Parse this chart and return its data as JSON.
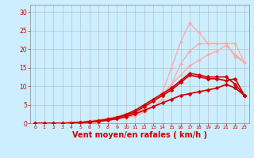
{
  "background_color": "#cceeff",
  "grid_color": "#aabbbb",
  "xlabel": "Vent moyen/en rafales ( km/h )",
  "xlabel_color": "#cc0000",
  "xlabel_fontsize": 7,
  "tick_color": "#cc0000",
  "yticks": [
    0,
    5,
    10,
    15,
    20,
    25,
    30
  ],
  "xticks": [
    0,
    1,
    2,
    3,
    4,
    5,
    6,
    7,
    8,
    9,
    10,
    11,
    12,
    13,
    14,
    15,
    16,
    17,
    18,
    19,
    20,
    21,
    22,
    23
  ],
  "xlim": [
    -0.5,
    23.5
  ],
  "ylim": [
    0,
    32
  ],
  "lines": [
    {
      "x": [
        0,
        1,
        2,
        3,
        4,
        5,
        6,
        7,
        8,
        9,
        10,
        11,
        12,
        13,
        14,
        15,
        16,
        17,
        18,
        19,
        20,
        21,
        22,
        23
      ],
      "y": [
        0,
        0,
        0,
        0,
        0,
        0.2,
        0.4,
        0.6,
        0.9,
        1.2,
        1.8,
        2.5,
        4.0,
        6.0,
        8.5,
        15.0,
        22.0,
        27.0,
        24.5,
        21.5,
        21.5,
        21.5,
        21.5,
        16.5
      ],
      "color": "#ffaaaa",
      "lw": 1.0,
      "marker": "D",
      "ms": 2.0
    },
    {
      "x": [
        0,
        1,
        2,
        3,
        4,
        5,
        6,
        7,
        8,
        9,
        10,
        11,
        12,
        13,
        14,
        15,
        16,
        17,
        18,
        19,
        20,
        21,
        22,
        23
      ],
      "y": [
        0,
        0,
        0,
        0,
        0,
        0.1,
        0.3,
        0.5,
        0.8,
        1.1,
        1.5,
        2.0,
        3.0,
        4.5,
        6.5,
        10.5,
        16.0,
        19.5,
        21.5,
        21.5,
        21.5,
        21.5,
        18.0,
        16.5
      ],
      "color": "#ffaaaa",
      "lw": 1.0,
      "marker": "D",
      "ms": 2.0
    },
    {
      "x": [
        0,
        1,
        2,
        3,
        4,
        5,
        6,
        7,
        8,
        9,
        10,
        11,
        12,
        13,
        14,
        15,
        16,
        17,
        18,
        19,
        20,
        21,
        22,
        23
      ],
      "y": [
        0,
        0,
        0,
        0.1,
        0.2,
        0.4,
        0.7,
        1.0,
        1.4,
        1.9,
        2.5,
        3.2,
        4.5,
        6.0,
        8.0,
        10.5,
        13.0,
        15.5,
        17.0,
        18.5,
        19.5,
        21.0,
        18.5,
        16.5
      ],
      "color": "#ffaaaa",
      "lw": 1.0,
      "marker": "D",
      "ms": 2.0
    },
    {
      "x": [
        0,
        1,
        2,
        3,
        4,
        5,
        6,
        7,
        8,
        9,
        10,
        11,
        12,
        13,
        14,
        15,
        16,
        17,
        18,
        19,
        20,
        21,
        22,
        23
      ],
      "y": [
        0,
        0,
        0,
        0,
        0.1,
        0.2,
        0.4,
        0.7,
        1.1,
        1.6,
        2.4,
        3.5,
        5.0,
        6.5,
        8.0,
        9.5,
        11.5,
        13.5,
        13.0,
        12.5,
        12.5,
        12.5,
        10.5,
        7.5
      ],
      "color": "#cc0000",
      "lw": 1.2,
      "marker": "D",
      "ms": 2.5
    },
    {
      "x": [
        0,
        1,
        2,
        3,
        4,
        5,
        6,
        7,
        8,
        9,
        10,
        11,
        12,
        13,
        14,
        15,
        16,
        17,
        18,
        19,
        20,
        21,
        22,
        23
      ],
      "y": [
        0,
        0,
        0,
        0,
        0.1,
        0.2,
        0.4,
        0.6,
        1.0,
        1.5,
        2.2,
        3.0,
        4.5,
        6.0,
        7.5,
        9.0,
        11.0,
        13.0,
        12.5,
        12.0,
        12.0,
        11.5,
        12.0,
        7.5
      ],
      "color": "#cc0000",
      "lw": 1.2,
      "marker": "D",
      "ms": 2.5
    },
    {
      "x": [
        0,
        1,
        2,
        3,
        4,
        5,
        6,
        7,
        8,
        9,
        10,
        11,
        12,
        13,
        14,
        15,
        16,
        17,
        18,
        19,
        20,
        21,
        22,
        23
      ],
      "y": [
        0,
        0,
        0,
        0,
        0.1,
        0.2,
        0.3,
        0.5,
        0.8,
        1.2,
        1.8,
        2.5,
        3.5,
        4.5,
        5.5,
        6.5,
        7.5,
        8.0,
        8.5,
        9.0,
        9.5,
        10.5,
        9.5,
        7.5
      ],
      "color": "#cc0000",
      "lw": 1.2,
      "marker": "D",
      "ms": 2.5
    }
  ]
}
